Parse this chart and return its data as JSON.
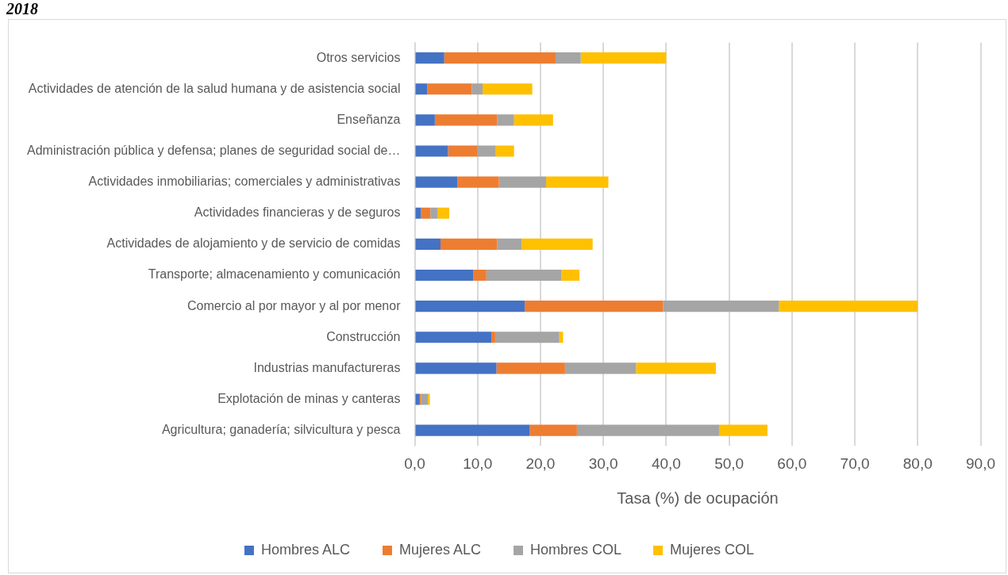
{
  "chart_data": {
    "type": "bar",
    "title": "2018",
    "orientation": "horizontal",
    "stacked": true,
    "categories": [
      "Otros servicios",
      "Actividades de atención de la salud humana y de asistencia social",
      "Enseñanza",
      "Administración pública y defensa; planes de seguridad social de…",
      "Actividades inmobiliarias; comerciales y administrativas",
      "Actividades financieras y de seguros",
      "Actividades de alojamiento y de servicio de comidas",
      "Transporte; almacenamiento y comunicación",
      "Comercio al por mayor y al por menor",
      "Construcción",
      "Industrias manufactureras",
      "Explotación de minas y canteras",
      "Agricultura; ganadería; silvicultura y pesca"
    ],
    "series": [
      {
        "name": "Hombres ALC",
        "color": "#4472c4",
        "values": [
          4.7,
          2.0,
          3.2,
          5.3,
          6.8,
          1.0,
          4.1,
          9.3,
          17.5,
          12.2,
          13.0,
          0.8,
          18.3
        ]
      },
      {
        "name": "Mujeres ALC",
        "color": "#ed7d31",
        "values": [
          17.7,
          7.1,
          9.9,
          4.7,
          6.6,
          1.5,
          9.0,
          2.1,
          22.0,
          0.6,
          10.9,
          0.2,
          7.5
        ]
      },
      {
        "name": "Hombres COL",
        "color": "#a5a5a5",
        "values": [
          4.0,
          1.7,
          2.7,
          2.9,
          7.5,
          1.1,
          3.9,
          11.9,
          18.4,
          10.2,
          11.3,
          1.1,
          22.6
        ]
      },
      {
        "name": "Mujeres COL",
        "color": "#ffc000",
        "values": [
          13.6,
          7.9,
          6.2,
          2.9,
          9.9,
          1.9,
          11.3,
          2.9,
          22.1,
          0.6,
          12.7,
          0.3,
          7.7
        ]
      }
    ],
    "xlabel": "Tasa (%) de ocupación",
    "xlim": [
      0,
      90
    ],
    "xticks": [
      {
        "value": 0,
        "label": "0,0"
      },
      {
        "value": 10,
        "label": "10,0"
      },
      {
        "value": 20,
        "label": "20,0"
      },
      {
        "value": 30,
        "label": "30,0"
      },
      {
        "value": 40,
        "label": "40,0"
      },
      {
        "value": 50,
        "label": "50,0"
      },
      {
        "value": 60,
        "label": "60,0"
      },
      {
        "value": 70,
        "label": "70,0"
      },
      {
        "value": 80,
        "label": "80,0"
      },
      {
        "value": 90,
        "label": "90,0"
      }
    ],
    "grid": "x",
    "legend": "bottom"
  }
}
